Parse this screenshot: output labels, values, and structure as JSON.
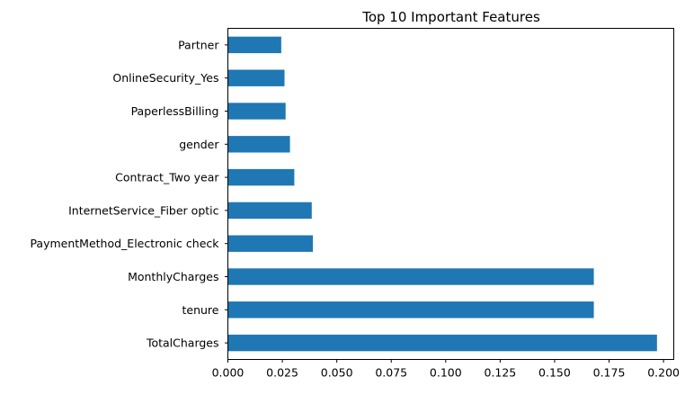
{
  "chart_data": {
    "type": "bar",
    "orientation": "horizontal",
    "title": "Top 10 Important Features",
    "xlabel": "",
    "ylabel": "",
    "categories": [
      "Partner",
      "OnlineSecurity_Yes",
      "PaperlessBilling",
      "gender",
      "Contract_Two year",
      "InternetService_Fiber optic",
      "PaymentMethod_Electronic check",
      "MonthlyCharges",
      "tenure",
      "TotalCharges"
    ],
    "values": [
      0.0245,
      0.026,
      0.0265,
      0.0285,
      0.0305,
      0.0385,
      0.039,
      0.168,
      0.168,
      0.197
    ],
    "xlim": [
      0,
      0.2047
    ],
    "xticks": [
      "0.000",
      "0.025",
      "0.050",
      "0.075",
      "0.100",
      "0.125",
      "0.150",
      "0.175",
      "0.200"
    ],
    "bar_color": "#1f77b4",
    "grid": false,
    "legend": "none"
  }
}
